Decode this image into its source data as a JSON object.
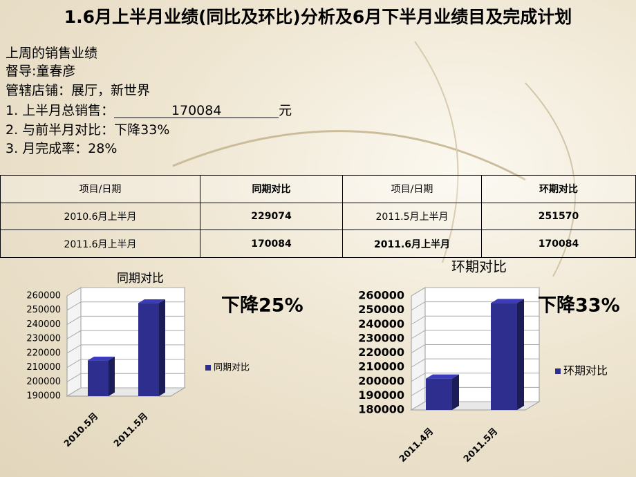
{
  "title": "1.6月上半月业绩(同比及环比)分析及6月下半月业绩目及完成计划",
  "info": {
    "heading": "上周的销售业绩",
    "supervisor": "督导:童春彦",
    "stores": "管辖店铺：展厅，新世界",
    "total_label": "1. 上半月总销售：",
    "total_value": 170084,
    "total_unit": "元",
    "compare": "2. 与前半月对比：下降33%",
    "completion": "3. 月完成率：28%"
  },
  "table": {
    "header": [
      "项目/日期",
      "同期对比",
      "项目/日期",
      "环期对比"
    ],
    "rows": [
      [
        "2010.6月上半月",
        "229074",
        "2011.5月上半月",
        "251570"
      ],
      [
        "2011.6月上半月",
        "170084",
        "2011.6月上半月",
        "170084"
      ]
    ]
  },
  "chart_data": [
    {
      "type": "bar",
      "title": "同期对比",
      "annotation": "下降25%",
      "categories": [
        "2010.5月",
        "2011.5月"
      ],
      "series": [
        {
          "name": "同期对比",
          "color": "#2e2e8f",
          "values": [
            215000,
            255000
          ]
        }
      ],
      "ylim": [
        190000,
        260000
      ],
      "yticks": [
        190000,
        200000,
        210000,
        220000,
        230000,
        240000,
        250000,
        260000
      ],
      "grid": true
    },
    {
      "type": "bar",
      "title": "环期对比",
      "annotation": "下降33%",
      "categories": [
        "2011.4月",
        "2011.5月"
      ],
      "series": [
        {
          "name": "环期对比",
          "color": "#2e2e8f",
          "values": [
            202000,
            255000
          ]
        }
      ],
      "ylim": [
        180000,
        260000
      ],
      "yticks": [
        180000,
        190000,
        200000,
        210000,
        220000,
        230000,
        240000,
        250000,
        260000
      ],
      "grid": true
    }
  ]
}
